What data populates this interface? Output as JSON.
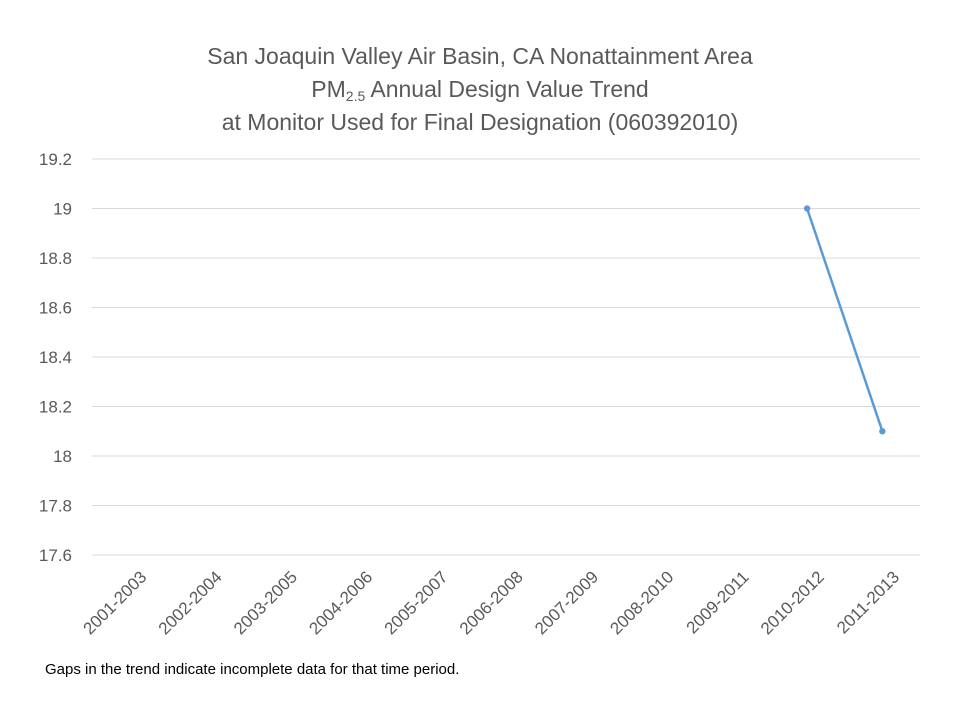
{
  "chart_data": {
    "type": "line",
    "title_line1": "San Joaquin Valley Air Basin, CA Nonattainment Area",
    "title_line2_prefix": "PM",
    "title_line2_sub": "2.5",
    "title_line2_suffix": " Annual Design Value Trend",
    "title_line3": "at Monitor Used for Final Designation (060392010)",
    "categories": [
      "2001-2003",
      "2002-2004",
      "2003-2005",
      "2004-2006",
      "2005-2007",
      "2006-2008",
      "2007-2009",
      "2008-2010",
      "2009-2011",
      "2010-2012",
      "2011-2013"
    ],
    "series": [
      {
        "values": [
          null,
          null,
          null,
          null,
          null,
          null,
          null,
          null,
          null,
          19,
          18.1
        ]
      }
    ],
    "y_ticks": [
      "17.6",
      "17.8",
      "18",
      "18.2",
      "18.4",
      "18.6",
      "18.8",
      "19",
      "19.2"
    ],
    "ylim": [
      17.6,
      19.2
    ],
    "grid": true,
    "line_color": "#5b9bd5",
    "grid_color": "#d9d9d9",
    "xlabel": "",
    "ylabel": ""
  },
  "footnote": "Gaps in the trend indicate incomplete data for that time period."
}
